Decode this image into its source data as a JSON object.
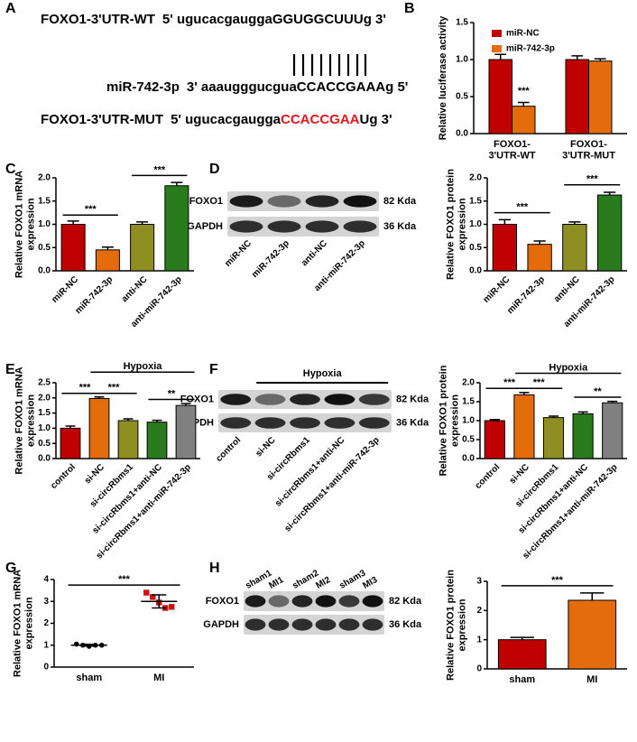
{
  "panel_labels": [
    "A",
    "B",
    "C",
    "D",
    "E",
    "F",
    "G",
    "H"
  ],
  "sequences": [
    {
      "name": "FOXO1-3'UTR-WT",
      "prefix": "5' ugucacgaugga",
      "site": "GGUGGCUUU",
      "suffix": "g 3'"
    },
    {
      "name": "miR-742-3p",
      "prefix": "3' aaaugggucgua",
      "site": "CCACCGAAA",
      "suffix": "g 5'"
    },
    {
      "name": "FOXO1-3'UTR-MUT",
      "prefix": "5' ugucacgaugga",
      "site": "CCACCGAA",
      "suffix": "Ug 3'",
      "site_color": "#e8161b"
    }
  ],
  "blots": [
    {
      "rows": [
        "FOXO1",
        "GAPDH"
      ],
      "sizes": [
        "82 Kda",
        "36 Kda"
      ],
      "lanes": [
        "miR-NC",
        "miR-742-3p",
        "anti-NC",
        "anti-miR-742-3p"
      ]
    },
    {
      "header": "Hypoxia",
      "rows": [
        "FOXO1",
        "GAPDH"
      ],
      "sizes": [
        "82 Kda",
        "36 Kda"
      ],
      "lanes": [
        "control",
        "si-NC",
        "si-circRbms1",
        "si-circRbms1+anti-NC",
        "si-circRbms1+anti-miR-742-3p"
      ]
    },
    {
      "rows": [
        "FOXO1",
        "GAPDH"
      ],
      "sizes": [
        "82 Kda",
        "36 Kda"
      ],
      "lanes": [
        "sham1",
        "MI1",
        "sham2",
        "MI2",
        "sham3",
        "MI3"
      ]
    }
  ],
  "chart_data": [
    {
      "type": "grouped_bar",
      "y_label": "Relative luciferase activity",
      "categories": [
        "FOXO1-\n3'UTR-WT",
        "FOXO1-\n3'UTR-MUT"
      ],
      "series": [
        {
          "name": "miR-NC",
          "color": "#c00000",
          "values": [
            1.0,
            1.0
          ],
          "errors": [
            0.07,
            0.05
          ]
        },
        {
          "name": "miR-742-3p",
          "color": "#e46c0a",
          "values": [
            0.37,
            0.98
          ],
          "errors": [
            0.05,
            0.03
          ]
        }
      ],
      "ylim": [
        0,
        1.5
      ],
      "yticks": [
        {
          "value": 0,
          "label": "0.0"
        },
        {
          "value": 0.5,
          "label": "0.5"
        },
        {
          "value": 1,
          "label": "1.0"
        },
        {
          "value": 1.5,
          "label": "1.5"
        }
      ],
      "annotations": [
        "***"
      ]
    },
    {
      "type": "bar",
      "y_label": "Relative FOXO1 mRNA\nexpression",
      "categories": [
        "miR-NC",
        "miR-742-3p",
        "anti-NC",
        "anti-miR-742-3p"
      ],
      "values": [
        1.0,
        0.45,
        1.0,
        1.83
      ],
      "errors": [
        0.07,
        0.06,
        0.05,
        0.07
      ],
      "colors": [
        "#c00000",
        "#e46c0a",
        "#8e8e22",
        "#2a7a1e"
      ],
      "ylim": [
        0,
        2
      ],
      "yticks": [
        {
          "value": 0,
          "label": "0.0"
        },
        {
          "value": 0.5,
          "label": "0.5"
        },
        {
          "value": 1,
          "label": "1.0"
        },
        {
          "value": 1.5,
          "label": "1.5"
        },
        {
          "value": 2,
          "label": "2.0"
        }
      ],
      "annotations": [
        "***",
        "***"
      ]
    },
    {
      "type": "bar",
      "y_label": "Relative FOXO1 protein\nexpression",
      "categories": [
        "miR-NC",
        "miR-742-3p",
        "anti-NC",
        "anti-miR-742-3p"
      ],
      "values": [
        1.0,
        0.57,
        1.0,
        1.63
      ],
      "errors": [
        0.1,
        0.07,
        0.05,
        0.06
      ],
      "colors": [
        "#c00000",
        "#e46c0a",
        "#8e8e22",
        "#2a7a1e"
      ],
      "ylim": [
        0,
        2
      ],
      "yticks": [
        {
          "value": 0,
          "label": "0.0"
        },
        {
          "value": 0.5,
          "label": "0.5"
        },
        {
          "value": 1,
          "label": "1.0"
        },
        {
          "value": 1.5,
          "label": "1.5"
        },
        {
          "value": 2,
          "label": "2.0"
        }
      ],
      "annotations": [
        "***",
        "***"
      ]
    },
    {
      "type": "bar",
      "y_label": "Relative FOXO1 mRNA\nexpression",
      "categories": [
        "control",
        "si-NC",
        "si-circRbms1",
        "si-circRbms1+anti-NC",
        "si-circRbms1+anti-miR-742-3p"
      ],
      "values": [
        1.0,
        1.98,
        1.25,
        1.2,
        1.75
      ],
      "errors": [
        0.07,
        0.05,
        0.06,
        0.06,
        0.06
      ],
      "colors": [
        "#c00000",
        "#e46c0a",
        "#8e8e22",
        "#2a7a1e",
        "#808080"
      ],
      "ylim": [
        0,
        2.5
      ],
      "yticks": [
        {
          "value": 0,
          "label": "0.0"
        },
        {
          "value": 0.5,
          "label": "0.5"
        },
        {
          "value": 1,
          "label": "1.0"
        },
        {
          "value": 1.5,
          "label": "1.5"
        },
        {
          "value": 2,
          "label": "2.0"
        },
        {
          "value": 2.5,
          "label": "2.5"
        }
      ],
      "annotations": [
        "Hypoxia",
        "***",
        "***",
        "**"
      ]
    },
    {
      "type": "bar",
      "y_label": "Relative FOXO1 protein\nexpression",
      "categories": [
        "control",
        "si-NC",
        "si-circRbms1",
        "si-circRbms1+anti-NC",
        "si-circRbms1+anti-miR-742-3p"
      ],
      "values": [
        1.0,
        1.68,
        1.08,
        1.18,
        1.47
      ],
      "errors": [
        0.03,
        0.06,
        0.04,
        0.05,
        0.04
      ],
      "colors": [
        "#c00000",
        "#e46c0a",
        "#8e8e22",
        "#2a7a1e",
        "#808080"
      ],
      "ylim": [
        0,
        2
      ],
      "yticks": [
        {
          "value": 0,
          "label": "0.0"
        },
        {
          "value": 0.5,
          "label": "0.5"
        },
        {
          "value": 1,
          "label": "1.0"
        },
        {
          "value": 1.5,
          "label": "1.5"
        },
        {
          "value": 2,
          "label": "2.0"
        }
      ],
      "annotations": [
        "Hypoxia",
        "***",
        "***",
        "**"
      ]
    },
    {
      "type": "dot",
      "y_label": "Relative FOXO1 mRNA\nexpression",
      "categories": [
        "sham",
        "MI"
      ],
      "points": [
        [
          1.05,
          1.0,
          0.95,
          1.0,
          1.0
        ],
        [
          3.4,
          3.2,
          2.95,
          2.7,
          2.75
        ]
      ],
      "means": [
        1.0,
        3.0
      ],
      "errors": [
        0.04,
        0.3
      ],
      "colors": [
        "#000000",
        "#d01010"
      ],
      "ylim": [
        0,
        4
      ],
      "yticks": [
        0,
        1,
        2,
        3,
        4
      ],
      "annotations": [
        "***"
      ]
    },
    {
      "type": "bar",
      "y_label": "Relative FOXO1 protein\nexpression",
      "categories": [
        "sham",
        "MI"
      ],
      "values": [
        1.0,
        2.35
      ],
      "errors": [
        0.08,
        0.25
      ],
      "colors": [
        "#c00000",
        "#e46c0a"
      ],
      "ylim": [
        0,
        3
      ],
      "yticks": [
        0,
        1,
        2,
        3
      ],
      "annotations": [
        "***"
      ]
    }
  ]
}
